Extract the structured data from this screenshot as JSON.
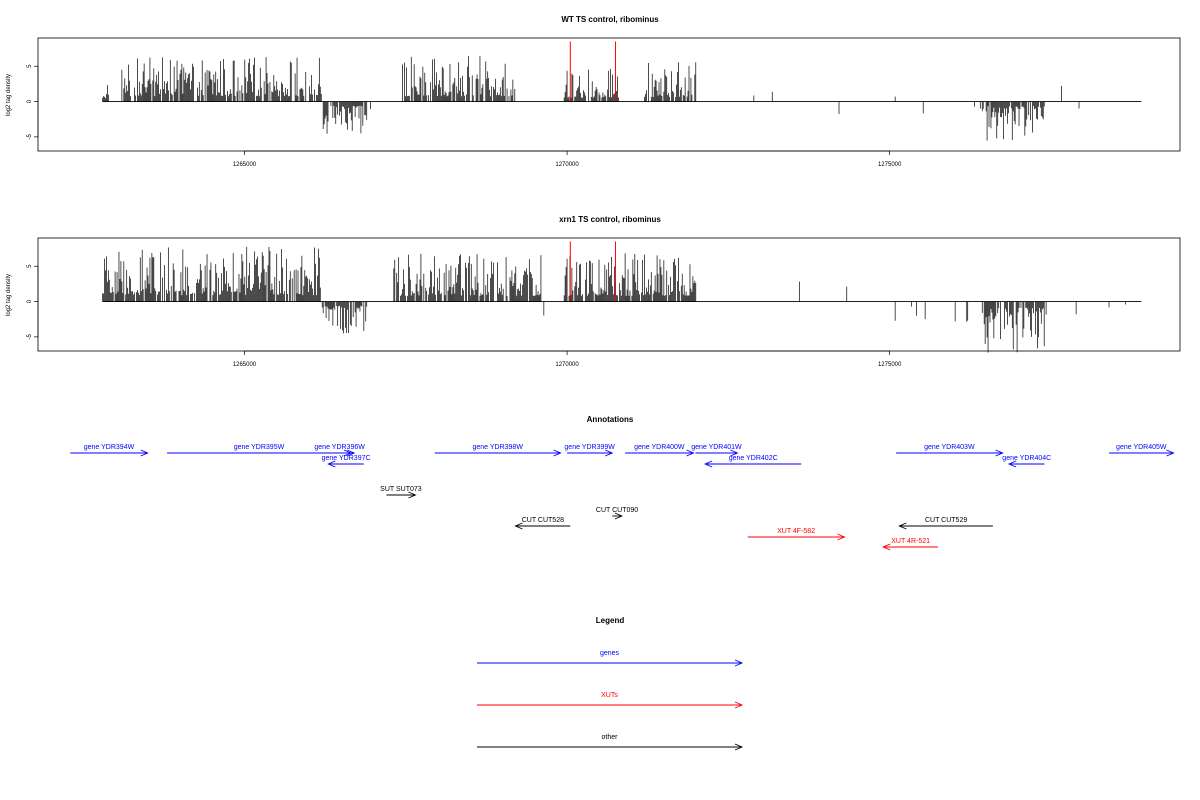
{
  "chart_data": [
    {
      "type": "bar",
      "title": "WT TS control, ribominus",
      "xlabel": "",
      "ylabel": "log2 tag density",
      "xlim": [
        1261800,
        1279500
      ],
      "ylim": [
        -7,
        9
      ],
      "xticks": [
        1265000,
        1270000,
        1275000
      ],
      "yticks": [
        -5,
        0,
        5
      ],
      "x_start": 1262800,
      "x_end": 1278900,
      "bin_width": 15,
      "segments": [
        {
          "x0": 1262800,
          "x1": 1262900,
          "sign": 1,
          "level": 1.6
        },
        {
          "x0": 1263100,
          "x1": 1266200,
          "sign": 1,
          "level": 3.0
        },
        {
          "x0": 1266200,
          "x1": 1266900,
          "sign": -1,
          "level": 2.2
        },
        {
          "x0": 1267450,
          "x1": 1269200,
          "sign": 1,
          "level": 3.0
        },
        {
          "x0": 1269950,
          "x1": 1270800,
          "sign": 1,
          "level": 2.2
        },
        {
          "x0": 1271200,
          "x1": 1272000,
          "sign": 1,
          "level": 2.6
        },
        {
          "x0": 1276400,
          "x1": 1277400,
          "sign": -1,
          "level": 2.6
        }
      ],
      "sparse_density": 0.012,
      "sparse_level": 1.2,
      "highlights": {
        "color": "#ff0000",
        "x": [
          1270050,
          1270750
        ],
        "y_top": 8.5
      }
    },
    {
      "type": "bar",
      "title": "xrn1 TS control, ribominus",
      "xlabel": "",
      "ylabel": "log2 tag density",
      "xlim": [
        1261800,
        1279500
      ],
      "ylim": [
        -7,
        9
      ],
      "xticks": [
        1265000,
        1270000,
        1275000
      ],
      "yticks": [
        -5,
        0,
        5
      ],
      "x_start": 1262800,
      "x_end": 1278900,
      "bin_width": 15,
      "segments": [
        {
          "x0": 1262800,
          "x1": 1266200,
          "sign": 1,
          "level": 3.6
        },
        {
          "x0": 1266200,
          "x1": 1266900,
          "sign": -1,
          "level": 2.4
        },
        {
          "x0": 1267300,
          "x1": 1269600,
          "sign": 1,
          "level": 3.2
        },
        {
          "x0": 1269950,
          "x1": 1272000,
          "sign": 1,
          "level": 3.2
        },
        {
          "x0": 1276400,
          "x1": 1277400,
          "sign": -1,
          "level": 3.5
        }
      ],
      "sparse_density": 0.03,
      "sparse_level": 1.6,
      "highlights": {
        "color": "#ff0000",
        "x": [
          1270050,
          1270750
        ],
        "y_top": 8.5
      }
    }
  ],
  "annotations": {
    "title": "Annotations",
    "xlim": [
      1261800,
      1279500
    ],
    "colors": {
      "genes": "#0000ff",
      "XUTs": "#ff0000",
      "other": "#000000"
    },
    "features": [
      {
        "label": "gene YDR394W",
        "category": "genes",
        "start": 1262300,
        "end": 1263500,
        "strand": "+",
        "row": 0
      },
      {
        "label": "gene YDR395W",
        "category": "genes",
        "start": 1263800,
        "end": 1266650,
        "strand": "+",
        "row": 0
      },
      {
        "label": "gene YDR396W",
        "category": "genes",
        "start": 1266250,
        "end": 1266700,
        "strand": "+",
        "row": 0
      },
      {
        "label": "gene YDR397C",
        "category": "genes",
        "start": 1266300,
        "end": 1266850,
        "strand": "-",
        "row": 1
      },
      {
        "label": "gene YDR398W",
        "category": "genes",
        "start": 1267950,
        "end": 1269900,
        "strand": "+",
        "row": 0
      },
      {
        "label": "gene YDR399W",
        "category": "genes",
        "start": 1270000,
        "end": 1270700,
        "strand": "+",
        "row": 0
      },
      {
        "label": "gene YDR400W",
        "category": "genes",
        "start": 1270900,
        "end": 1271960,
        "strand": "+",
        "row": 0
      },
      {
        "label": "gene YDR401W",
        "category": "genes",
        "start": 1271990,
        "end": 1272640,
        "strand": "+",
        "row": 0
      },
      {
        "label": "gene YDR402C",
        "category": "genes",
        "start": 1272140,
        "end": 1273630,
        "strand": "-",
        "row": 1
      },
      {
        "label": "gene YDR403W",
        "category": "genes",
        "start": 1275100,
        "end": 1276750,
        "strand": "+",
        "row": 0
      },
      {
        "label": "gene YDR404C",
        "category": "genes",
        "start": 1276850,
        "end": 1277400,
        "strand": "-",
        "row": 1
      },
      {
        "label": "gene YDR405W",
        "category": "genes",
        "start": 1278400,
        "end": 1279400,
        "strand": "+",
        "row": 0
      },
      {
        "label": "SUT SUT073",
        "category": "other",
        "start": 1267200,
        "end": 1267650,
        "strand": "+",
        "row": 3
      },
      {
        "label": "CUT CUT528",
        "category": "other",
        "start": 1269200,
        "end": 1270050,
        "strand": "-",
        "row": 5
      },
      {
        "label": "CUT CUT090",
        "category": "other",
        "start": 1270700,
        "end": 1270850,
        "strand": "+",
        "row": 4
      },
      {
        "label": "CUT CUT529",
        "category": "other",
        "start": 1275150,
        "end": 1276600,
        "strand": "-",
        "row": 5
      },
      {
        "label": "XUT 4F-582",
        "category": "XUTs",
        "start": 1272800,
        "end": 1274300,
        "strand": "+",
        "row": 6
      },
      {
        "label": "XUT 4R-521",
        "category": "XUTs",
        "start": 1274900,
        "end": 1275750,
        "strand": "-",
        "row": 7
      }
    ]
  },
  "legend": {
    "title": "Legend",
    "items": [
      {
        "label": "genes",
        "color": "#0000ff"
      },
      {
        "label": "XUTs",
        "color": "#ff0000"
      },
      {
        "label": "other",
        "color": "#000000"
      }
    ]
  }
}
